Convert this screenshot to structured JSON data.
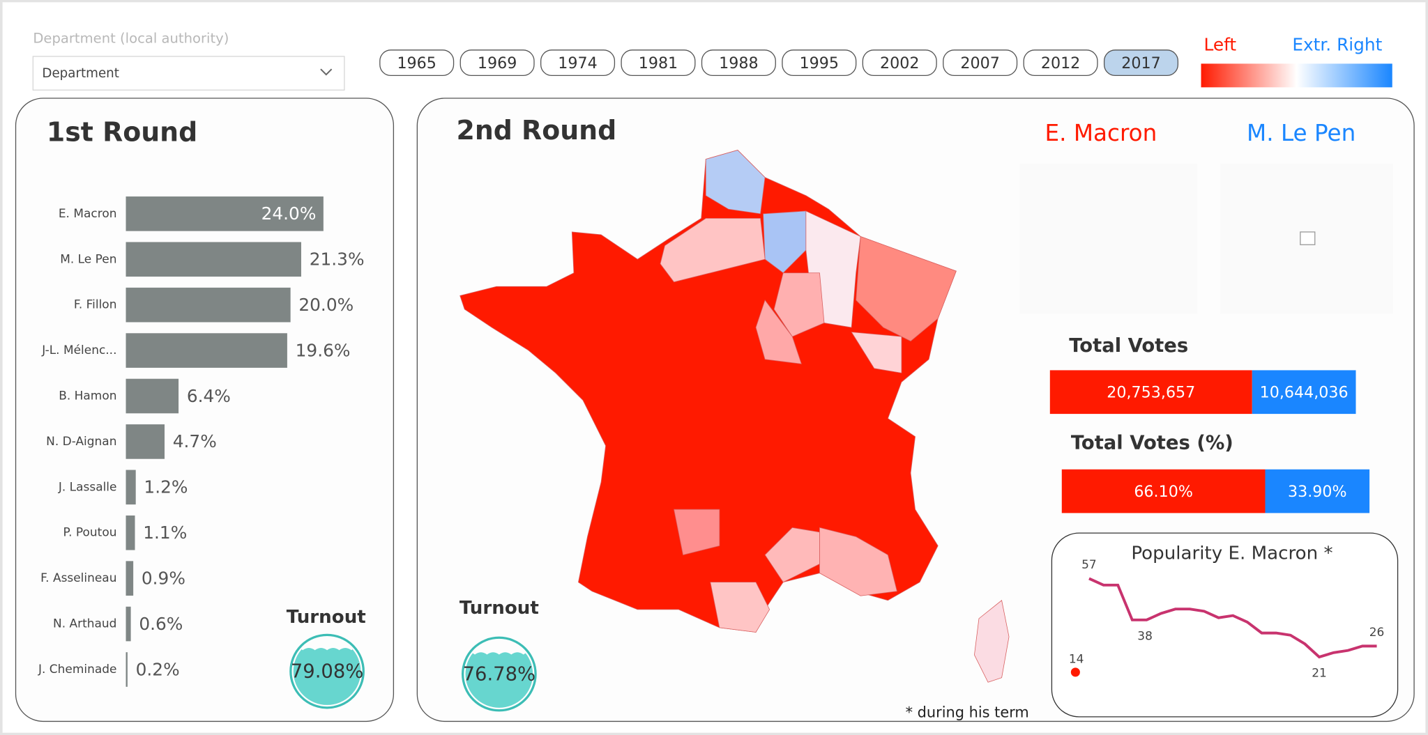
{
  "filter": {
    "label": "Department (local authority)",
    "placeholder": "Department"
  },
  "years": {
    "options": [
      "1965",
      "1969",
      "1974",
      "1981",
      "1988",
      "1995",
      "2002",
      "2007",
      "2012",
      "2017"
    ],
    "selected": "2017"
  },
  "legend": {
    "left": "Left",
    "right": "Extr. Right",
    "left_color": "#ff1a00",
    "right_color": "#1a86ff"
  },
  "round1": {
    "title": "1st Round",
    "type": "bar",
    "categories": [
      "E. Macron",
      "M. Le Pen",
      "F. Fillon",
      "J-L. Mélenc...",
      "B. Hamon",
      "N. D-Aignan",
      "J. Lassalle",
      "P. Poutou",
      "F. Asselineau",
      "N. Arthaud",
      "J. Cheminade"
    ],
    "values": [
      24.0,
      21.3,
      20.0,
      19.6,
      6.4,
      4.7,
      1.2,
      1.1,
      0.9,
      0.6,
      0.2
    ],
    "value_labels": [
      "24.0%",
      "21.3%",
      "20.0%",
      "19.6%",
      "6.4%",
      "4.7%",
      "1.2%",
      "1.1%",
      "0.9%",
      "0.6%",
      "0.2%"
    ],
    "color": "#7f8685",
    "xlim": [
      0,
      24.0
    ],
    "turnout": {
      "title": "Turnout",
      "value": 79.08,
      "label": "79.08%"
    }
  },
  "round2": {
    "title": "2nd Round",
    "turnout": {
      "title": "Turnout",
      "value": 76.78,
      "label": "76.78%"
    },
    "candidates": [
      "E. Macron",
      "M. Le Pen"
    ],
    "total_votes": {
      "title": "Total Votes",
      "values": [
        20753657,
        10644036
      ],
      "value_labels": [
        "20,753,657",
        "10,644,036"
      ]
    },
    "total_votes_pct": {
      "title": "Total Votes (%)",
      "values": [
        66.1,
        33.9
      ],
      "value_labels": [
        "66.10%",
        "33.90%"
      ]
    },
    "note": "* during his term"
  },
  "popularity": {
    "title": "Popularity E. Macron *",
    "type": "line",
    "color": "#c8336e",
    "values": [
      57,
      54,
      54,
      38,
      38,
      41,
      43,
      43,
      42,
      39,
      40,
      37,
      32,
      32,
      31,
      27,
      21,
      23,
      24,
      26,
      26
    ],
    "highlight": 14,
    "highlight_color": "#ff1a00",
    "ylim": [
      14,
      57
    ]
  }
}
